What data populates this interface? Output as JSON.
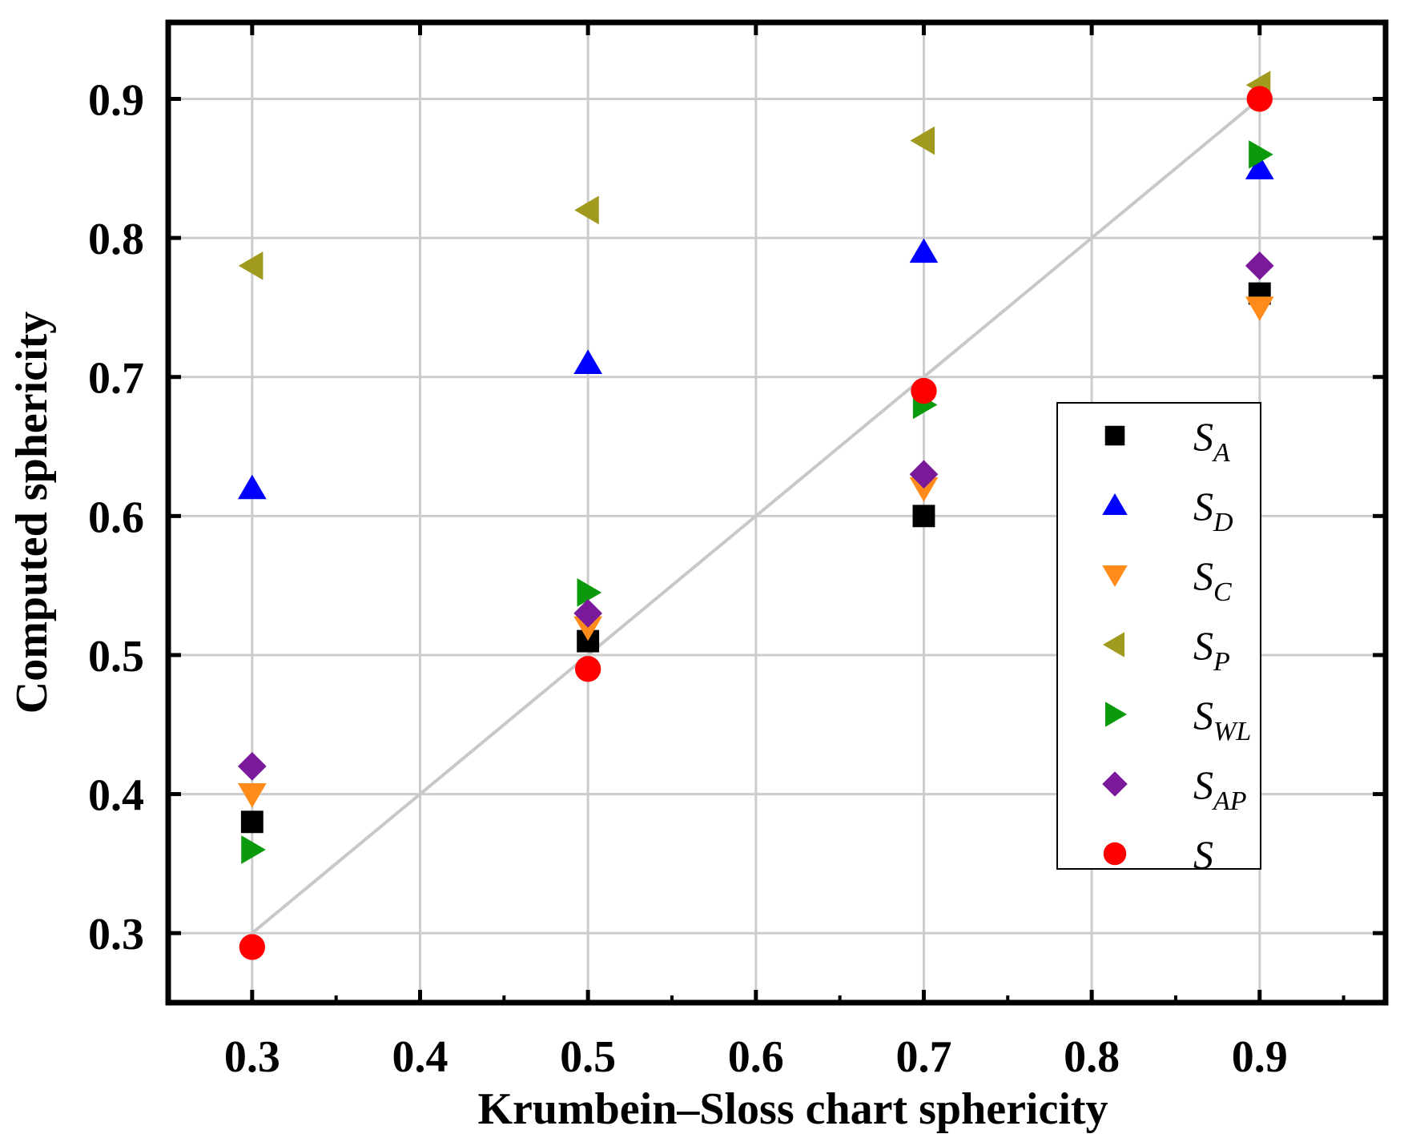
{
  "chart_data": {
    "type": "scatter",
    "title": "",
    "xlabel": "Krumbein–Sloss chart sphericity",
    "ylabel": "Computed sphericity",
    "xlim": [
      0.25,
      0.975
    ],
    "ylim": [
      0.25,
      0.955
    ],
    "grid": true,
    "legend_position": "right",
    "x_ticks": [
      "0.3",
      "0.4",
      "0.5",
      "0.6",
      "0.7",
      "0.8",
      "0.9"
    ],
    "x_tick_values": [
      0.3,
      0.4,
      0.5,
      0.6,
      0.7,
      0.8,
      0.9
    ],
    "y_ticks": [
      "0.3",
      "0.4",
      "0.5",
      "0.6",
      "0.7",
      "0.8",
      "0.9"
    ],
    "y_tick_values": [
      0.3,
      0.4,
      0.5,
      0.6,
      0.7,
      0.8,
      0.9
    ],
    "reference_line": {
      "name": "y = x",
      "x": [
        0.3,
        0.9
      ],
      "y": [
        0.3,
        0.9
      ],
      "color": "#c8c8c8"
    },
    "x": [
      0.3,
      0.5,
      0.7,
      0.9
    ],
    "series": [
      {
        "name": "S",
        "subscript": "A",
        "marker": "square",
        "color": "#000000",
        "values": [
          0.38,
          0.51,
          0.6,
          0.76
        ]
      },
      {
        "name": "S",
        "subscript": "D",
        "marker": "triangle-up",
        "color": "#0000ff",
        "values": [
          0.62,
          0.71,
          0.79,
          0.85
        ]
      },
      {
        "name": "S",
        "subscript": "C",
        "marker": "triangle-down",
        "color": "#ff8c1a",
        "values": [
          0.4,
          0.52,
          0.62,
          0.75
        ]
      },
      {
        "name": "S",
        "subscript": "P",
        "marker": "triangle-left",
        "color": "#a09a1e",
        "values": [
          0.78,
          0.82,
          0.87,
          0.91
        ]
      },
      {
        "name": "S",
        "subscript": "WL",
        "marker": "triangle-right",
        "color": "#0b9a0b",
        "values": [
          0.36,
          0.545,
          0.68,
          0.86
        ]
      },
      {
        "name": "S",
        "subscript": "AP",
        "marker": "diamond",
        "color": "#7a1a9a",
        "values": [
          0.42,
          0.53,
          0.63,
          0.78
        ]
      },
      {
        "name": "S",
        "subscript": "",
        "marker": "circle",
        "color": "#ff0000",
        "values": [
          0.29,
          0.49,
          0.69,
          0.9
        ]
      }
    ]
  }
}
